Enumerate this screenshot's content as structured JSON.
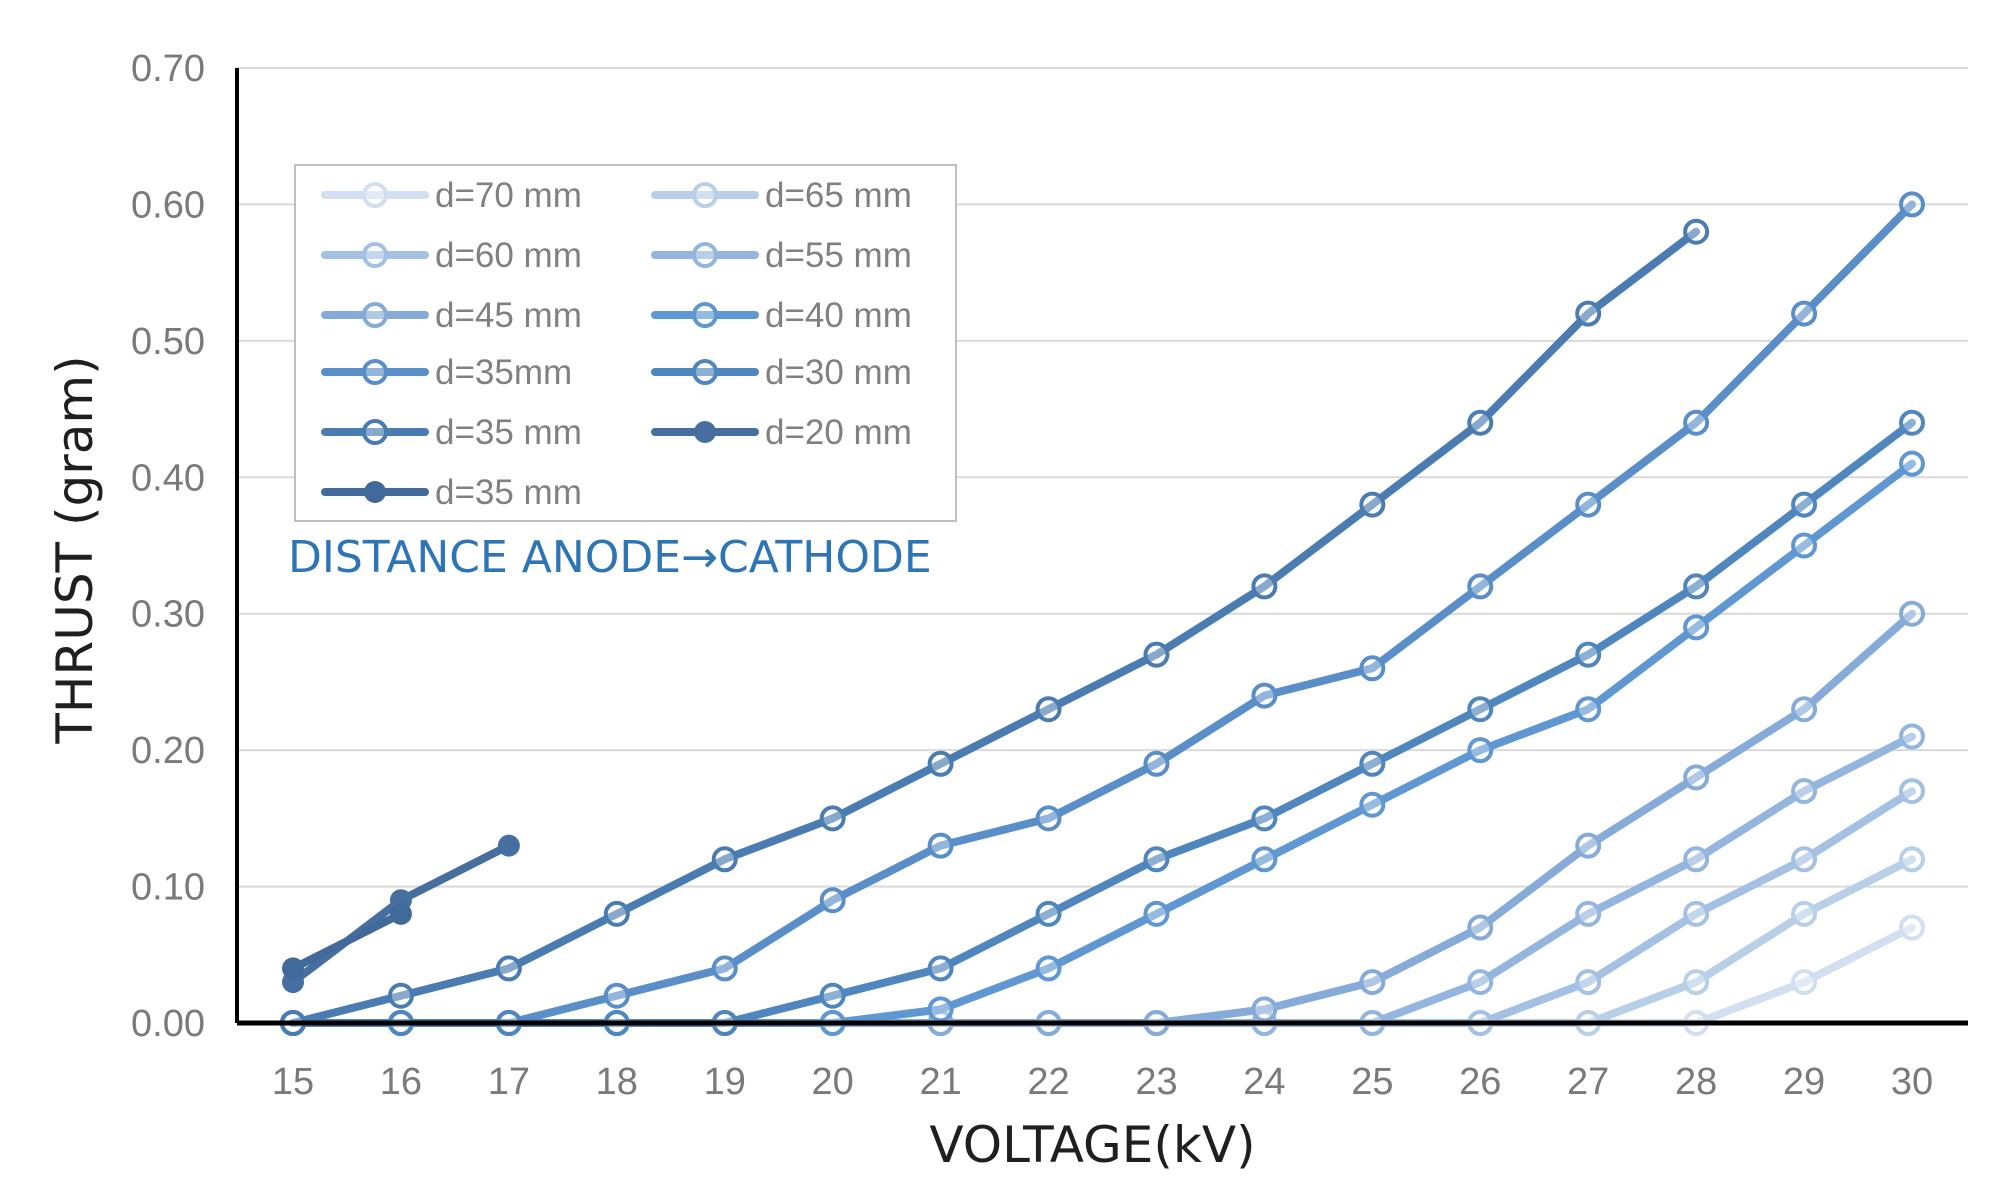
{
  "chart_data": {
    "type": "line",
    "title": "",
    "xlabel": "VOLTAGE(kV)",
    "ylabel": "THRUST (gram)",
    "x": [
      15,
      16,
      17,
      18,
      19,
      20,
      21,
      22,
      23,
      24,
      25,
      26,
      27,
      28,
      29,
      30
    ],
    "xlim": [
      15,
      30
    ],
    "ylim": [
      0,
      0.7
    ],
    "yticks": [
      "0.00",
      "0.10",
      "0.20",
      "0.30",
      "0.40",
      "0.50",
      "0.60",
      "0.70"
    ],
    "grid": "horizontal",
    "legend_position": "top-left",
    "annotation": "DISTANCE ANODE→CATHODE",
    "series": [
      {
        "name": "d=70 mm",
        "marker": "ring",
        "color": "#d2dff0",
        "values": [
          0,
          0,
          0,
          0,
          0,
          0,
          0,
          0,
          0,
          0,
          0,
          0,
          0,
          0,
          0.03,
          0.07
        ]
      },
      {
        "name": "d=65 mm",
        "marker": "ring",
        "color": "#b8cfe8",
        "values": [
          0,
          0,
          0,
          0,
          0,
          0,
          0,
          0,
          0,
          0,
          0,
          0,
          0,
          0.03,
          0.08,
          0.12
        ]
      },
      {
        "name": "d=60 mm",
        "marker": "ring",
        "color": "#a4c1e3",
        "values": [
          0,
          0,
          0,
          0,
          0,
          0,
          0,
          0,
          0,
          0,
          0,
          0,
          0.03,
          0.08,
          0.12,
          0.17
        ]
      },
      {
        "name": "d=55 mm",
        "marker": "ring",
        "color": "#94b6de",
        "values": [
          0,
          0,
          0,
          0,
          0,
          0,
          0,
          0,
          0,
          0,
          0,
          0.03,
          0.08,
          0.12,
          0.17,
          0.21
        ]
      },
      {
        "name": "d=45 mm",
        "marker": "ring",
        "color": "#86abd8",
        "values": [
          0,
          0,
          0,
          0,
          0,
          0,
          0,
          0,
          0,
          0.01,
          0.03,
          0.07,
          0.13,
          0.18,
          0.23,
          0.3
        ]
      },
      {
        "name": "d=40 mm",
        "marker": "ring",
        "color": "#5f97d2",
        "values": [
          0,
          0,
          0,
          0,
          0,
          0,
          0.01,
          0.04,
          0.08,
          0.12,
          0.16,
          0.2,
          0.23,
          0.29,
          0.35,
          0.41
        ]
      },
      {
        "name": "d=35mm",
        "marker": "ring",
        "color": "#5a8ec8",
        "values": [
          0,
          0,
          0,
          0.02,
          0.04,
          0.09,
          0.13,
          0.15,
          0.19,
          0.24,
          0.26,
          0.32,
          0.38,
          0.44,
          0.52,
          0.6
        ]
      },
      {
        "name": "d=30 mm",
        "marker": "ring",
        "color": "#4f86be",
        "values": [
          0,
          0,
          0,
          0,
          0,
          0.02,
          0.04,
          0.08,
          0.12,
          0.15,
          0.19,
          0.23,
          0.27,
          0.32,
          0.38,
          0.44
        ]
      },
      {
        "name": "d=35 mm",
        "marker": "ring",
        "color": "#4a7cb1",
        "values": [
          0,
          0.02,
          0.04,
          0.08,
          0.12,
          0.15,
          0.19,
          0.23,
          0.27,
          0.32,
          0.38,
          0.44,
          0.52,
          0.58,
          null,
          null
        ]
      },
      {
        "name": "d=20 mm",
        "marker": "dot",
        "color": "#466fa0",
        "values": [
          0.03,
          0.09,
          0.13,
          null,
          null,
          null,
          null,
          null,
          null,
          null,
          null,
          null,
          null,
          null,
          null,
          null
        ]
      },
      {
        "name": "d=35 mm",
        "marker": "dot",
        "color": "#41699a",
        "values": [
          0.04,
          0.08,
          null,
          null,
          null,
          null,
          null,
          null,
          null,
          null,
          null,
          null,
          null,
          null,
          null,
          null
        ]
      }
    ]
  }
}
